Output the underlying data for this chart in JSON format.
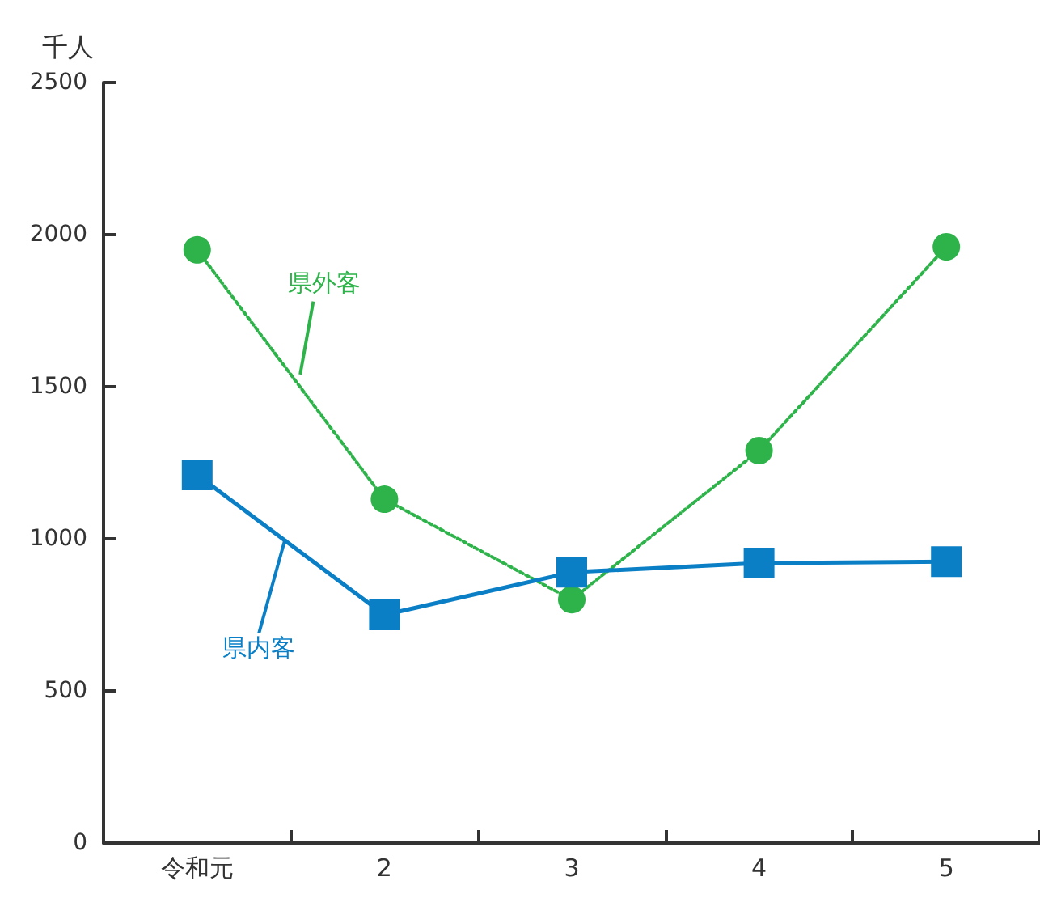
{
  "chart_data": {
    "type": "line",
    "ylabel": "千人",
    "categories": [
      "令和元",
      "2",
      "3",
      "4",
      "5"
    ],
    "series": [
      {
        "name": "県外客",
        "color": "#2db34a",
        "values": [
          1950,
          1130,
          800,
          1290,
          1960
        ],
        "marker": "circle",
        "line_style": "dotted"
      },
      {
        "name": "県内客",
        "color": "#0a7fc6",
        "values": [
          1210,
          750,
          890,
          920,
          925
        ],
        "marker": "square",
        "line_style": "solid"
      }
    ],
    "ylim": [
      0,
      2500
    ],
    "yticks": [
      0,
      500,
      1000,
      1500,
      2000,
      2500
    ],
    "grid": false,
    "legend": false
  }
}
